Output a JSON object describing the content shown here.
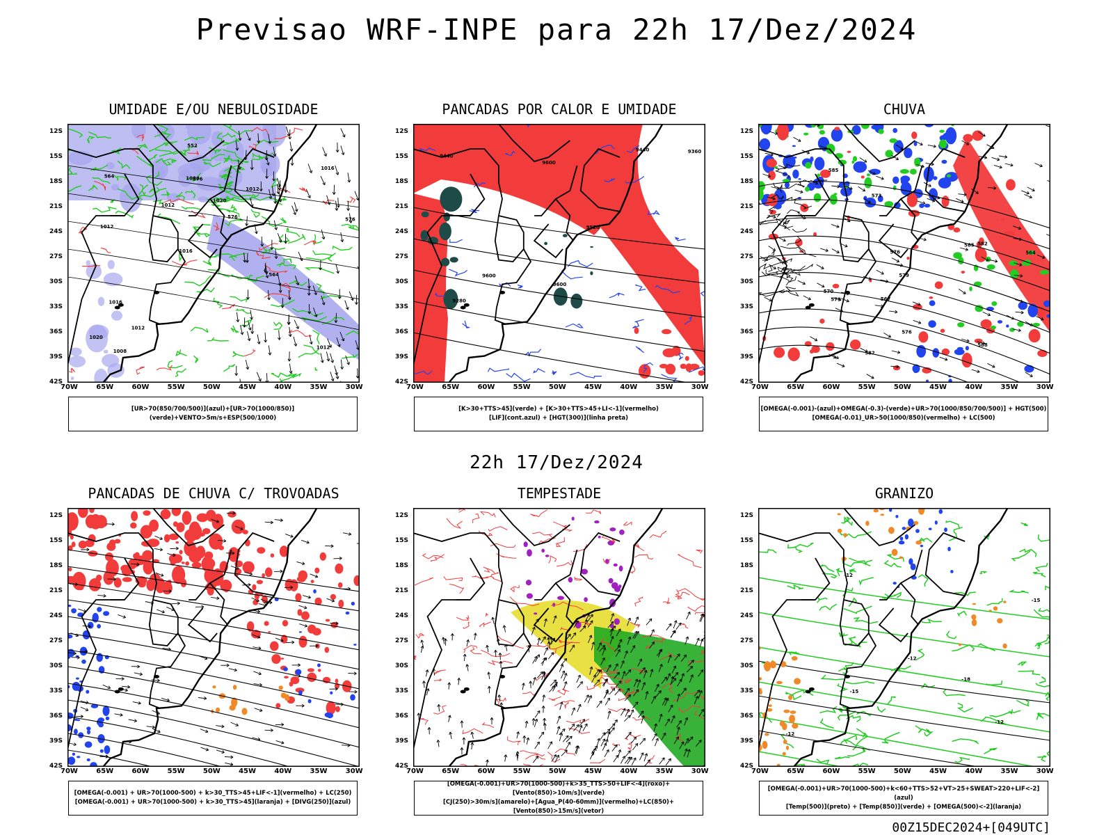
{
  "header": {
    "main_title": "Previsao WRF-INPE  para 22h 17/Dez/2024",
    "mid_title": "22h 17/Dez/2024",
    "footer": "00Z15DEC2024+[049UTC]"
  },
  "axes": {
    "lat_labels": [
      "12S",
      "15S",
      "18S",
      "21S",
      "24S",
      "27S",
      "30S",
      "33S",
      "36S",
      "39S",
      "42S"
    ],
    "lon_labels": [
      "70W",
      "65W",
      "60W",
      "55W",
      "50W",
      "45W",
      "40W",
      "35W",
      "30W"
    ]
  },
  "colors": {
    "red": "#f23b3b",
    "green": "#22cc22",
    "blue": "#2244ee",
    "lavender": "#a8a8ee",
    "darkteal": "#1e4a48",
    "yellow": "#e8de3a",
    "purple": "#a020c0",
    "orange": "#f08a28"
  },
  "panels": [
    {
      "title": "UMIDADE E/OU NEBULOSIDADE",
      "legend": [
        "[UR>70(850/700/500)](azul)+[UR>70(1000/850)](verde)+VENTO>5m/s+ESP(500/1000)"
      ],
      "contour_labels": [
        "1012",
        "1012",
        "1016",
        "1016",
        "1012",
        "1008",
        "1004",
        "1020",
        "1016",
        "1012",
        "1020",
        "1012",
        "576",
        "576",
        "564",
        "564",
        "552",
        "576"
      ]
    },
    {
      "title": "PANCADAS POR CALOR E UMIDADE",
      "legend": [
        "[K>30+TTS>45](verde) + [K>30+TTS>45+LI<-1](vermelho)",
        "[LIF](cont.azul) + [HGT(300)](linha preta)"
      ],
      "contour_labels": [
        "9600",
        "9600",
        "9600",
        "9520",
        "9440",
        "9440",
        "9360",
        "9280"
      ]
    },
    {
      "title": "CHUVA",
      "legend": [
        "[OMEGA(-0.001)-(azul)+OMEGA(-0.3)-(verde)+UR>70(1000/850/700/500)] + HGT(500)",
        "[OMEGA(-0.01)_UR>50(1000/850)(vermelho) + LC(500)"
      ],
      "contour_labels": [
        "585",
        "588",
        "582",
        "579",
        "576",
        "573",
        "576",
        "570",
        "567",
        "564",
        "579",
        "585",
        "582"
      ]
    },
    {
      "title": "PANCADAS DE CHUVA C/ TROVOADAS",
      "legend": [
        "[OMEGA(-0.001) + UR>70(1000-500) + k>30_TTS>45+LIF<-1](vermelho) + LC(250)",
        "[OMEGA(-0.001) + UR>70(1000-500) + k>30_TTS>45](laranja) + [DIVG(250)](azul)"
      ],
      "contour_labels": []
    },
    {
      "title": "TEMPESTADE",
      "legend": [
        "[OMEGA(-0.001)+UR>70(1000-500)+k>35_TTS>50+LIF<-4](roxo)+[Vento(850)>10m/s](verde)",
        "[CJ(250)>30m/s](amarelo)+[Agua_P(40-60mm)](vermelho)+LC(850)+[Vento(850)>15m/s](vetor)"
      ],
      "contour_labels": []
    },
    {
      "title": "GRANIZO",
      "legend": [
        "[OMEGA(-0.001)+UR>70(1000-500)+k<60+TTS>52+VT>25+SWEAT>220+LIF<-2](azul)",
        "[Temp(500)](preto) + [Temp(850)](verde) + [OMEGA(500)<-2](laranja)"
      ],
      "contour_labels": [
        "-12",
        "-12",
        "-12",
        "-15",
        "-15",
        "-18",
        "-12"
      ]
    }
  ]
}
